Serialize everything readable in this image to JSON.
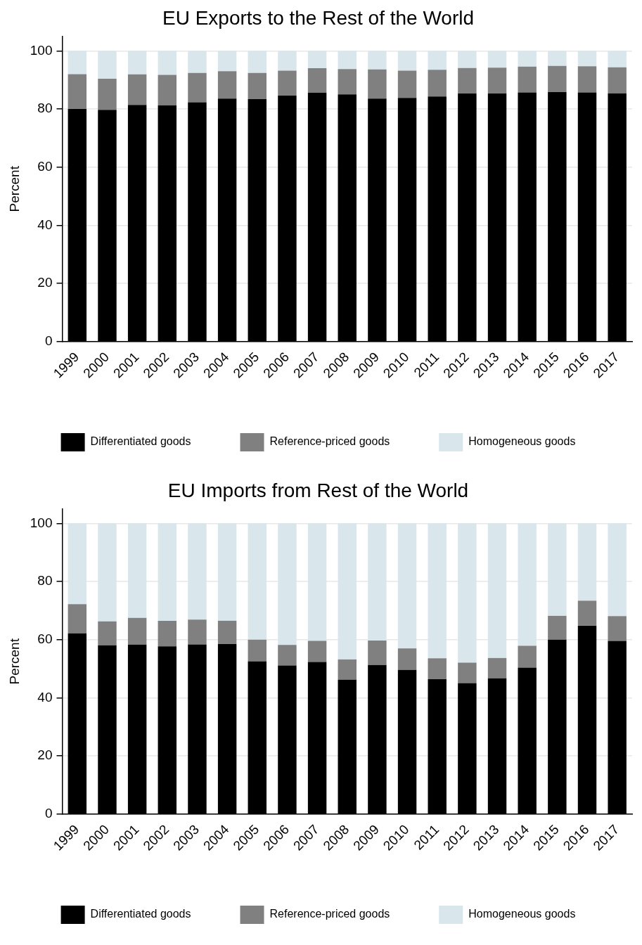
{
  "chart_data": [
    {
      "type": "bar",
      "title": "EU Exports to the Rest of the World",
      "ylabel": "Percent",
      "stacked": true,
      "legend": "bottom",
      "grid": "y",
      "categories": [
        "1999",
        "2000",
        "2001",
        "2002",
        "2003",
        "2004",
        "2005",
        "2006",
        "2007",
        "2008",
        "2009",
        "2010",
        "2011",
        "2012",
        "2013",
        "2014",
        "2015",
        "2016",
        "2017"
      ],
      "ylim": [
        0,
        105
      ],
      "yticks": [
        0,
        20,
        40,
        60,
        80,
        100
      ],
      "series": [
        {
          "name": "Differentiated goods",
          "color": "#000000",
          "values": [
            80,
            79.7,
            81.4,
            81.3,
            82.3,
            83.6,
            83.4,
            84.6,
            85.6,
            85,
            83.6,
            83.8,
            84.3,
            85.3,
            85.3,
            85.7,
            85.8,
            85.7,
            85.4
          ]
        },
        {
          "name": "Reference-priced goods",
          "color": "#808080",
          "values": [
            12,
            10.7,
            10.5,
            10.4,
            10.1,
            9.4,
            9,
            8.6,
            8.4,
            8.7,
            10,
            9.4,
            9.2,
            8.8,
            8.9,
            8.9,
            9,
            9,
            8.9
          ]
        },
        {
          "name": "Homogeneous goods",
          "color": "#d9e6ec",
          "values": [
            8,
            9.6,
            8.1,
            8.3,
            7.6,
            7,
            7.6,
            6.8,
            6,
            6.3,
            6.4,
            6.8,
            6.5,
            5.9,
            5.8,
            5.4,
            5.2,
            5.3,
            5.7
          ]
        }
      ]
    },
    {
      "type": "bar",
      "title": "EU Imports from Rest of the World",
      "ylabel": "Percent",
      "stacked": true,
      "legend": "bottom",
      "grid": "y",
      "categories": [
        "1999",
        "2000",
        "2001",
        "2002",
        "2003",
        "2004",
        "2005",
        "2006",
        "2007",
        "2008",
        "2009",
        "2010",
        "2011",
        "2012",
        "2013",
        "2014",
        "2015",
        "2016",
        "2017"
      ],
      "ylim": [
        0,
        105
      ],
      "yticks": [
        0,
        20,
        40,
        60,
        80,
        100
      ],
      "series": [
        {
          "name": "Differentiated goods",
          "color": "#000000",
          "values": [
            62.2,
            58.1,
            58.3,
            57.7,
            58.4,
            58.5,
            52.6,
            51.1,
            52.3,
            46.2,
            51.3,
            49.6,
            46.4,
            45.1,
            46.7,
            50.4,
            60,
            64.8,
            59.6
          ]
        },
        {
          "name": "Reference-priced goods",
          "color": "#808080",
          "values": [
            10,
            8.2,
            9.2,
            8.8,
            8.5,
            8,
            7.4,
            7.1,
            7.3,
            7,
            8.4,
            7.4,
            7.2,
            7,
            7,
            7.5,
            8.2,
            8.6,
            8.5
          ]
        },
        {
          "name": "Homogeneous goods",
          "color": "#d9e6ec",
          "values": [
            27.8,
            33.7,
            32.5,
            33.5,
            33.1,
            33.5,
            40,
            41.8,
            40.4,
            46.8,
            40.3,
            43,
            46.4,
            47.9,
            46.3,
            42.1,
            31.8,
            26.6,
            31.9
          ]
        }
      ]
    }
  ]
}
